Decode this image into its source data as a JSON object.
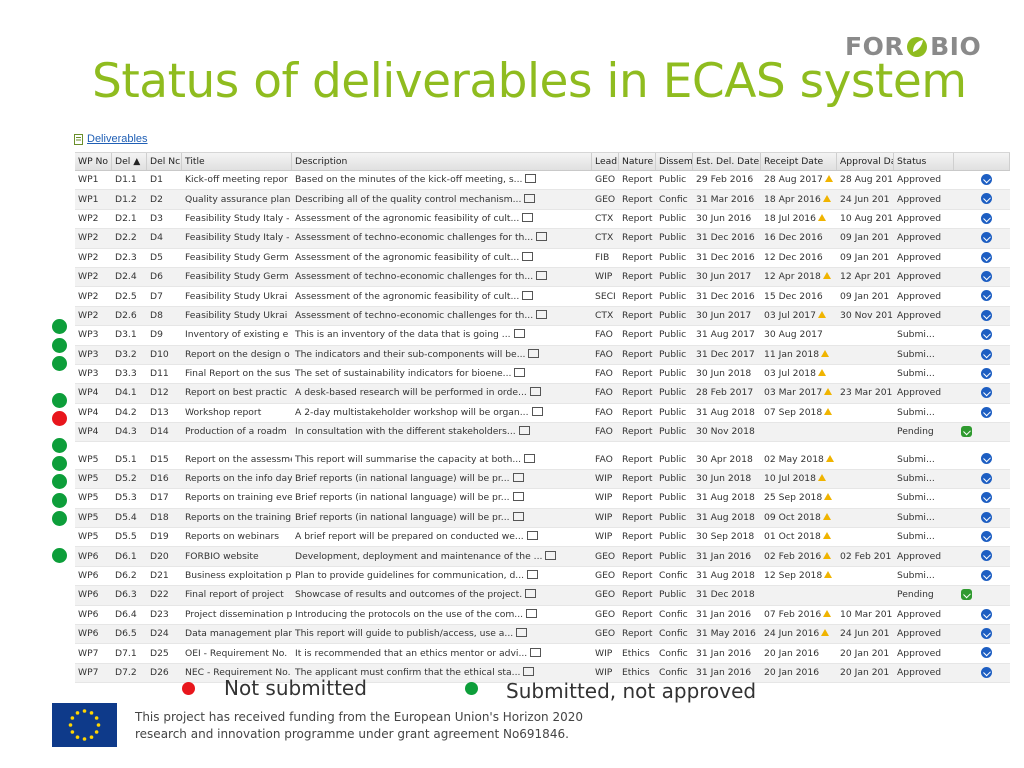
{
  "logo": {
    "text_left": "FOR",
    "text_right": "BIO"
  },
  "title": "Status of deliverables in ECAS system",
  "breadcrumb": {
    "label": "Deliverables"
  },
  "table": {
    "headers": [
      "WP No",
      "Del ▲",
      "Del Nc",
      "Title",
      "Description",
      "Lead",
      "Nature",
      "Dissemi",
      "Est. Del. Date (",
      "Receipt Date",
      "Approval Da",
      "Status"
    ],
    "rows": [
      {
        "wp": "WP1",
        "del": "D1.1",
        "dnc": "D1",
        "title": "Kick-off meeting repor",
        "desc": "Based on the minutes of the kick-off meeting, s...",
        "lead": "GEO",
        "nature": "Report",
        "diss": "Public",
        "est": "29 Feb 2016",
        "rec": "28 Aug 2017",
        "rec_warn": true,
        "app": "28 Aug 201",
        "status": "Approved",
        "action": "blue"
      },
      {
        "wp": "WP1",
        "del": "D1.2",
        "dnc": "D2",
        "title": "Quality assurance plan",
        "desc": "Describing all of the quality control mechanism...",
        "lead": "GEO",
        "nature": "Report",
        "diss": "Confic",
        "est": "31 Mar 2016",
        "rec": "18 Apr 2016",
        "rec_warn": true,
        "app": "24 Jun 201",
        "status": "Approved",
        "action": "blue"
      },
      {
        "wp": "WP2",
        "del": "D2.1",
        "dnc": "D3",
        "title": "Feasibility Study Italy -",
        "desc": "Assessment of the agronomic feasibility of cult...",
        "lead": "CTX",
        "nature": "Report",
        "diss": "Public",
        "est": "30 Jun 2016",
        "rec": "18 Jul 2016",
        "rec_warn": true,
        "app": "10 Aug 201",
        "status": "Approved",
        "action": "blue"
      },
      {
        "wp": "WP2",
        "del": "D2.2",
        "dnc": "D4",
        "title": "Feasibility Study Italy -",
        "desc": "Assessment of techno-economic challenges for th...",
        "lead": "CTX",
        "nature": "Report",
        "diss": "Public",
        "est": "31 Dec 2016",
        "rec": "16 Dec 2016",
        "rec_warn": false,
        "app": "09 Jan 201",
        "status": "Approved",
        "action": "blue"
      },
      {
        "wp": "WP2",
        "del": "D2.3",
        "dnc": "D5",
        "title": "Feasibility Study Germ",
        "desc": "Assessment of the agronomic feasibility of cult...",
        "lead": "FIB",
        "nature": "Report",
        "diss": "Public",
        "est": "31 Dec 2016",
        "rec": "12 Dec 2016",
        "rec_warn": false,
        "app": "09 Jan 201",
        "status": "Approved",
        "action": "blue"
      },
      {
        "wp": "WP2",
        "del": "D2.4",
        "dnc": "D6",
        "title": "Feasibility Study Germ",
        "desc": "Assessment of techno-economic challenges for th...",
        "lead": "WIP",
        "nature": "Report",
        "diss": "Public",
        "est": "30 Jun 2017",
        "rec": "12 Apr 2018",
        "rec_warn": true,
        "app": "12 Apr 201",
        "status": "Approved",
        "action": "blue"
      },
      {
        "wp": "WP2",
        "del": "D2.5",
        "dnc": "D7",
        "title": "Feasibility Study Ukrai",
        "desc": "Assessment of the agronomic feasibility of cult...",
        "lead": "SECI",
        "nature": "Report",
        "diss": "Public",
        "est": "31 Dec 2016",
        "rec": "15 Dec 2016",
        "rec_warn": false,
        "app": "09 Jan 201",
        "status": "Approved",
        "action": "blue"
      },
      {
        "wp": "WP2",
        "del": "D2.6",
        "dnc": "D8",
        "title": "Feasibility Study Ukrai",
        "desc": "Assessment of techno-economic challenges for th...",
        "lead": "CTX",
        "nature": "Report",
        "diss": "Public",
        "est": "30 Jun 2017",
        "rec": "03 Jul 2017",
        "rec_warn": true,
        "app": "30 Nov 201",
        "status": "Approved",
        "action": "blue"
      },
      {
        "wp": "WP3",
        "del": "D3.1",
        "dnc": "D9",
        "title": "Inventory of existing e",
        "desc": "This is an inventory of the data that is going ...",
        "lead": "FAO",
        "nature": "Report",
        "diss": "Public",
        "est": "31 Aug 2017",
        "rec": "30 Aug 2017",
        "rec_warn": false,
        "app": "",
        "status": "Submi...",
        "action": "blue",
        "dot": "green"
      },
      {
        "wp": "WP3",
        "del": "D3.2",
        "dnc": "D10",
        "title": "Report on the design o",
        "desc": "The indicators and their sub-components will be...",
        "lead": "FAO",
        "nature": "Report",
        "diss": "Public",
        "est": "31 Dec 2017",
        "rec": "11 Jan 2018",
        "rec_warn": true,
        "app": "",
        "status": "Submi...",
        "action": "blue",
        "dot": "green"
      },
      {
        "wp": "WP3",
        "del": "D3.3",
        "dnc": "D11",
        "title": "Final Report on the sus",
        "desc": "The set of sustainability indicators for bioene...",
        "lead": "FAO",
        "nature": "Report",
        "diss": "Public",
        "est": "30 Jun 2018",
        "rec": "03 Jul 2018",
        "rec_warn": true,
        "app": "",
        "status": "Submi...",
        "action": "blue",
        "dot": "green"
      },
      {
        "wp": "WP4",
        "del": "D4.1",
        "dnc": "D12",
        "title": "Report on best practic",
        "desc": "A desk-based research will be performed in orde...",
        "lead": "FAO",
        "nature": "Report",
        "diss": "Public",
        "est": "28 Feb 2017",
        "rec": "03 Mar 2017",
        "rec_warn": true,
        "app": "23 Mar 201",
        "status": "Approved",
        "action": "blue"
      },
      {
        "wp": "WP4",
        "del": "D4.2",
        "dnc": "D13",
        "title": "Workshop report",
        "desc": "A 2-day multistakeholder workshop will be organ...",
        "lead": "FAO",
        "nature": "Report",
        "diss": "Public",
        "est": "31 Aug 2018",
        "rec": "07 Sep 2018",
        "rec_warn": true,
        "app": "",
        "status": "Submi...",
        "action": "blue",
        "dot": "green"
      },
      {
        "wp": "WP4",
        "del": "D4.3",
        "dnc": "D14",
        "title": "Production of a roadm",
        "desc": "In consultation with the different stakeholders...",
        "lead": "FAO",
        "nature": "Report",
        "diss": "Public",
        "est": "30 Nov 2018",
        "rec": "",
        "rec_warn": false,
        "app": "",
        "status": "Pending",
        "action": "green",
        "dot": "red"
      },
      {
        "gap": true
      },
      {
        "wp": "WP5",
        "del": "D5.1",
        "dnc": "D15",
        "title": "Report on the assessme",
        "desc": "This report will summarise the capacity at both...",
        "lead": "FAO",
        "nature": "Report",
        "diss": "Public",
        "est": "30 Apr 2018",
        "rec": "02 May 2018",
        "rec_warn": true,
        "app": "",
        "status": "Submi...",
        "action": "blue",
        "dot": "green"
      },
      {
        "wp": "WP5",
        "del": "D5.2",
        "dnc": "D16",
        "title": "Reports on the info day",
        "desc": "Brief reports (in national language) will be pr...",
        "lead": "WIP",
        "nature": "Report",
        "diss": "Public",
        "est": "30 Jun 2018",
        "rec": "10 Jul 2018",
        "rec_warn": true,
        "app": "",
        "status": "Submi...",
        "action": "blue",
        "dot": "green"
      },
      {
        "wp": "WP5",
        "del": "D5.3",
        "dnc": "D17",
        "title": "Reports on training eve",
        "desc": "Brief reports (in national language) will be pr...",
        "lead": "WIP",
        "nature": "Report",
        "diss": "Public",
        "est": "31 Aug 2018",
        "rec": "25 Sep 2018",
        "rec_warn": true,
        "app": "",
        "status": "Submi...",
        "action": "blue",
        "dot": "green"
      },
      {
        "wp": "WP5",
        "del": "D5.4",
        "dnc": "D18",
        "title": "Reports on the training",
        "desc": "Brief reports (in national language) will be pr...",
        "lead": "WIP",
        "nature": "Report",
        "diss": "Public",
        "est": "31 Aug 2018",
        "rec": "09 Oct 2018",
        "rec_warn": true,
        "app": "",
        "status": "Submi...",
        "action": "blue",
        "dot": "green"
      },
      {
        "wp": "WP5",
        "del": "D5.5",
        "dnc": "D19",
        "title": "Reports on webinars",
        "desc": "A brief report will be prepared on conducted we...",
        "lead": "WIP",
        "nature": "Report",
        "diss": "Public",
        "est": "30 Sep 2018",
        "rec": "01 Oct 2018",
        "rec_warn": true,
        "app": "",
        "status": "Submi...",
        "action": "blue",
        "dot": "green"
      },
      {
        "wp": "WP6",
        "del": "D6.1",
        "dnc": "D20",
        "title": "FORBIO website",
        "desc": "Development, deployment and maintenance of the ...",
        "lead": "GEO",
        "nature": "Report",
        "diss": "Public",
        "est": "31 Jan 2016",
        "rec": "02 Feb 2016",
        "rec_warn": true,
        "app": "02 Feb 201",
        "status": "Approved",
        "action": "blue"
      },
      {
        "wp": "WP6",
        "del": "D6.2",
        "dnc": "D21",
        "title": "Business exploitation p",
        "desc": "Plan to provide guidelines for communication, d...",
        "lead": "GEO",
        "nature": "Report",
        "diss": "Confic",
        "est": "31 Aug 2018",
        "rec": "12 Sep 2018",
        "rec_warn": true,
        "app": "",
        "status": "Submi...",
        "action": "blue",
        "dot": "green"
      },
      {
        "wp": "WP6",
        "del": "D6.3",
        "dnc": "D22",
        "title": "Final report of project",
        "desc": "Showcase of results and outcomes of the project.",
        "lead": "GEO",
        "nature": "Report",
        "diss": "Public",
        "est": "31 Dec 2018",
        "rec": "",
        "rec_warn": false,
        "app": "",
        "status": "Pending",
        "action": "green"
      },
      {
        "wp": "WP6",
        "del": "D6.4",
        "dnc": "D23",
        "title": "Project dissemination p",
        "desc": "Introducing the protocols on the use of the com...",
        "lead": "GEO",
        "nature": "Report",
        "diss": "Confic",
        "est": "31 Jan 2016",
        "rec": "07 Feb 2016",
        "rec_warn": true,
        "app": "10 Mar 201",
        "status": "Approved",
        "action": "blue"
      },
      {
        "wp": "WP6",
        "del": "D6.5",
        "dnc": "D24",
        "title": "Data management plar",
        "desc": "This report will guide to publish/access, use a...",
        "lead": "GEO",
        "nature": "Report",
        "diss": "Confic",
        "est": "31 May 2016",
        "rec": "24 Jun 2016",
        "rec_warn": true,
        "app": "24 Jun 201",
        "status": "Approved",
        "action": "blue"
      },
      {
        "wp": "WP7",
        "del": "D7.1",
        "dnc": "D25",
        "title": "OEI - Requirement No.",
        "desc": "It is recommended that an ethics mentor or advi...",
        "lead": "WIP",
        "nature": "Ethics",
        "diss": "Confic",
        "est": "31 Jan 2016",
        "rec": "20 Jan 2016",
        "rec_warn": false,
        "app": "20 Jan 201",
        "status": "Approved",
        "action": "blue"
      },
      {
        "wp": "WP7",
        "del": "D7.2",
        "dnc": "D26",
        "title": "NEC - Requirement No.",
        "desc": "The applicant must confirm that the ethical sta...",
        "lead": "WIP",
        "nature": "Ethics",
        "diss": "Confic",
        "est": "31 Jan 2016",
        "rec": "20 Jan 2016",
        "rec_warn": false,
        "app": "20 Jan 201",
        "status": "Approved",
        "action": "blue"
      }
    ]
  },
  "legend": {
    "red_label": "Not submitted",
    "green_label": "Submitted, not approved"
  },
  "colors": {
    "title": "#8fbc1f",
    "dot_green": "#0d9e3a",
    "dot_red": "#e8161c",
    "action_blue": "#1d5ec2",
    "action_green": "#2f9a2f",
    "warn": "#f0b400"
  },
  "footer": {
    "line1": "This project has received funding from the European Union's Horizon 2020",
    "line2": "research and innovation programme under grant agreement No691846."
  }
}
